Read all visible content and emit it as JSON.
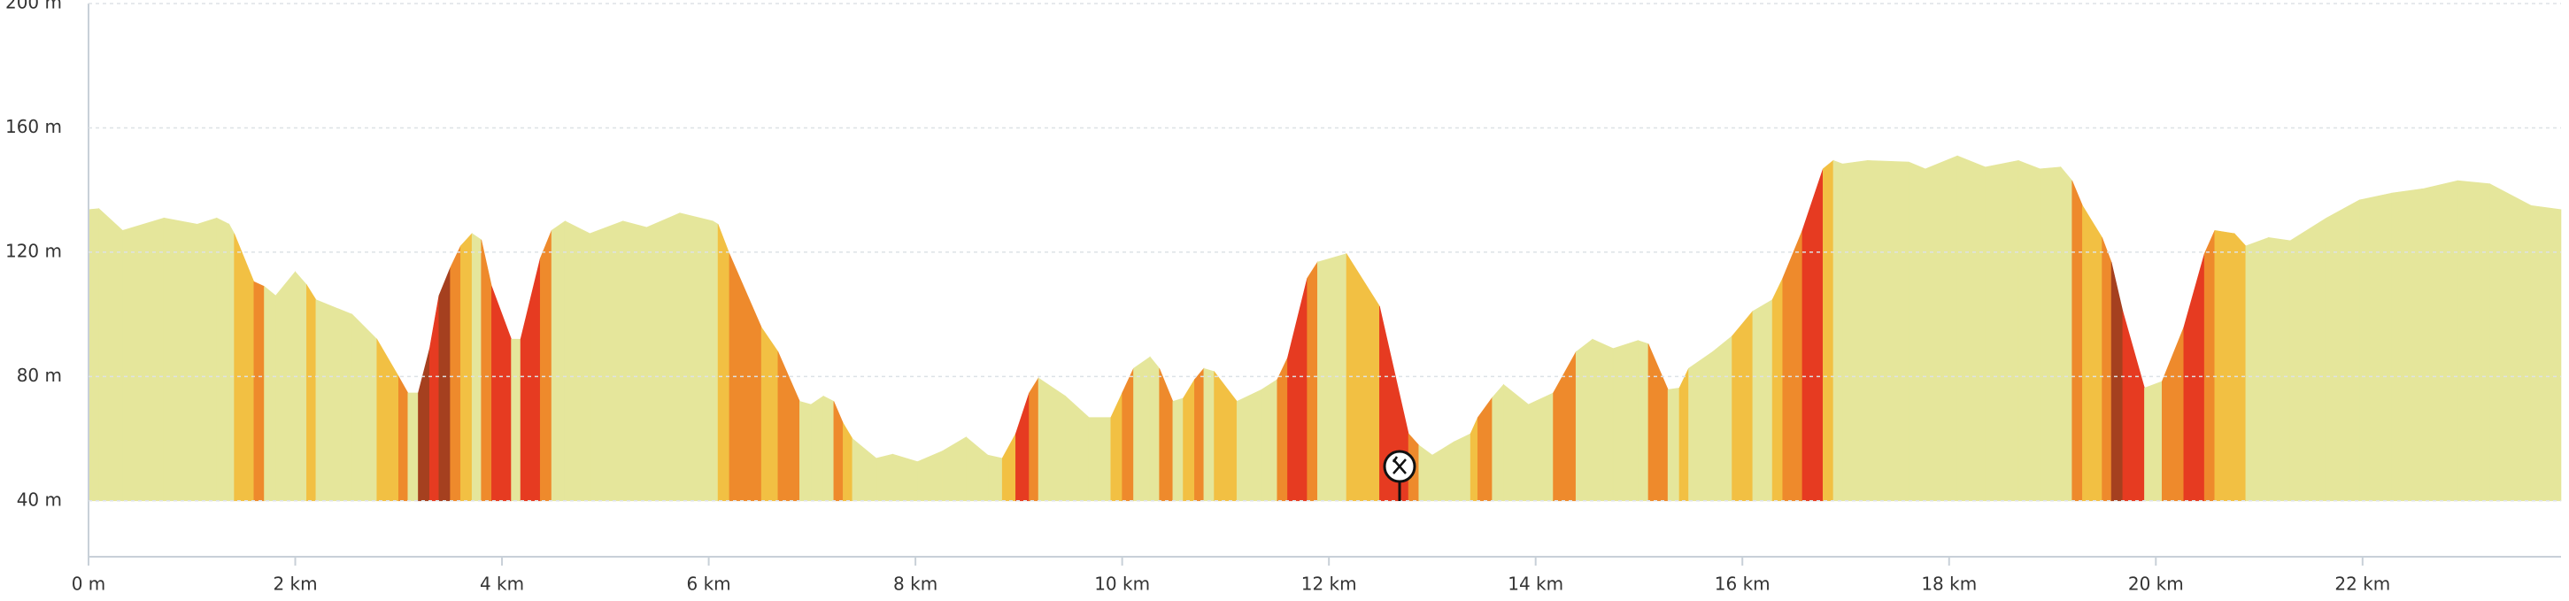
{
  "chart_data": {
    "type": "area",
    "x": [
      0,
      0.1,
      0.33,
      0.73,
      1.05,
      1.24,
      1.36,
      1.41,
      1.6,
      1.7,
      1.81,
      2.0,
      2.11,
      2.2,
      2.55,
      2.79,
      3.0,
      3.09,
      3.19,
      3.3,
      3.39,
      3.5,
      3.6,
      3.71,
      3.8,
      3.9,
      4.09,
      4.18,
      4.37,
      4.48,
      4.61,
      4.85,
      5.17,
      5.4,
      5.72,
      6.04,
      6.09,
      6.2,
      6.51,
      6.67,
      6.88,
      6.99,
      7.11,
      7.21,
      7.3,
      7.39,
      7.62,
      7.78,
      8.02,
      8.26,
      8.49,
      8.7,
      8.84,
      8.97,
      9.1,
      9.19,
      9.45,
      9.68,
      9.89,
      10.0,
      10.11,
      10.27,
      10.36,
      10.49,
      10.59,
      10.7,
      10.79,
      10.89,
      11.11,
      11.35,
      11.5,
      11.6,
      11.79,
      11.89,
      12.17,
      12.49,
      12.77,
      12.87,
      13.0,
      13.21,
      13.37,
      13.44,
      13.58,
      13.69,
      13.93,
      14.17,
      14.39,
      14.55,
      14.75,
      14.99,
      15.09,
      15.28,
      15.39,
      15.48,
      15.71,
      15.9,
      16.1,
      16.29,
      16.39,
      16.58,
      16.78,
      16.88,
      16.97,
      17.21,
      17.61,
      17.77,
      18.08,
      18.35,
      18.67,
      18.88,
      19.08,
      19.19,
      19.29,
      19.48,
      19.57,
      19.68,
      19.89,
      20.06,
      20.27,
      20.47,
      20.57,
      20.76,
      20.87,
      21.09,
      21.3,
      21.65,
      21.97,
      22.28,
      22.6,
      22.92,
      23.23,
      23.63,
      23.92
    ],
    "values": [
      133.7,
      134,
      127,
      131,
      129,
      131,
      129,
      126,
      110.5,
      109,
      106,
      113.7,
      109.5,
      104.7,
      100,
      92,
      80,
      74.7,
      74.7,
      89,
      106,
      115,
      122,
      126,
      124,
      109,
      92,
      92,
      118,
      127,
      130,
      126,
      130,
      128,
      132.6,
      130,
      129,
      119.5,
      95.8,
      88,
      72,
      71,
      73.7,
      72,
      65,
      60,
      53.7,
      55,
      52.6,
      56,
      60.5,
      54.7,
      53.7,
      61.6,
      74.7,
      79.5,
      73.7,
      66.8,
      66.8,
      74.7,
      82.6,
      86.3,
      82.6,
      72,
      73,
      79,
      82.6,
      81.6,
      72,
      75.8,
      79,
      86,
      111.6,
      116.8,
      119.5,
      102.6,
      61.6,
      57.9,
      54.7,
      59,
      61.6,
      66.8,
      73.2,
      77.4,
      71,
      74.7,
      87.9,
      92,
      89,
      91.6,
      90.5,
      75.8,
      76.3,
      82.6,
      87.9,
      93,
      101,
      104.7,
      111.6,
      127,
      146.8,
      149.5,
      148.4,
      149.5,
      149,
      146.8,
      151,
      147.4,
      149.5,
      146.8,
      147.4,
      143,
      135,
      124.7,
      116.8,
      101,
      76.3,
      78.4,
      95.8,
      119.5,
      127,
      126,
      122,
      124.7,
      123.7,
      131,
      136.8,
      139,
      140.5,
      143,
      142,
      135,
      133.7
    ],
    "segment_colors": [
      "#e5e69b",
      "#e5e69b",
      "#e5e69b",
      "#e5e69b",
      "#e5e69b",
      "#e5e69b",
      "#e5e69b",
      "#f2c043",
      "#ee8a2c",
      "#e5e69b",
      "#e5e69b",
      "#e5e69b",
      "#f2c043",
      "#e5e69b",
      "#e5e69b",
      "#f2c043",
      "#ee8a2c",
      "#e5e69b",
      "#a5401f",
      "#e63b21",
      "#a5401f",
      "#ee8a2c",
      "#f2c043",
      "#e5e69b",
      "#ee8a2c",
      "#e63b21",
      "#e5e69b",
      "#e63b21",
      "#ee8a2c",
      "#e5e69b",
      "#e5e69b",
      "#e5e69b",
      "#e5e69b",
      "#e5e69b",
      "#e5e69b",
      "#e5e69b",
      "#f2c043",
      "#ee8a2c",
      "#f2c043",
      "#ee8a2c",
      "#e5e69b",
      "#e5e69b",
      "#e5e69b",
      "#ee8a2c",
      "#f2c043",
      "#e5e69b",
      "#e5e69b",
      "#e5e69b",
      "#e5e69b",
      "#e5e69b",
      "#e5e69b",
      "#e5e69b",
      "#f2c043",
      "#e63b21",
      "#ee8a2c",
      "#e5e69b",
      "#e5e69b",
      "#e5e69b",
      "#f2c043",
      "#ee8a2c",
      "#e5e69b",
      "#e5e69b",
      "#ee8a2c",
      "#e5e69b",
      "#f2c043",
      "#ee8a2c",
      "#e5e69b",
      "#f2c043",
      "#e5e69b",
      "#e5e69b",
      "#ee8a2c",
      "#e63b21",
      "#ee8a2c",
      "#e5e69b",
      "#f2c043",
      "#e63b21",
      "#ee8a2c",
      "#e5e69b",
      "#e5e69b",
      "#e5e69b",
      "#f2c043",
      "#ee8a2c",
      "#e5e69b",
      "#e5e69b",
      "#e5e69b",
      "#ee8a2c",
      "#e5e69b",
      "#e5e69b",
      "#e5e69b",
      "#e5e69b",
      "#ee8a2c",
      "#e5e69b",
      "#f2c043",
      "#e5e69b",
      "#e5e69b",
      "#f2c043",
      "#e5e69b",
      "#f2c043",
      "#ee8a2c",
      "#e63b21",
      "#f2c043",
      "#e5e69b",
      "#e5e69b",
      "#e5e69b",
      "#e5e69b",
      "#e5e69b",
      "#e5e69b",
      "#e5e69b",
      "#e5e69b",
      "#e5e69b",
      "#e5e69b",
      "#ee8a2c",
      "#f2c043",
      "#ee8a2c",
      "#a5401f",
      "#e63b21",
      "#e5e69b",
      "#ee8a2c",
      "#e63b21",
      "#ee8a2c",
      "#f2c043",
      "#f2c043",
      "#e5e69b",
      "#e5e69b",
      "#e5e69b",
      "#e5e69b",
      "#e5e69b",
      "#e5e69b",
      "#e5e69b",
      "#e5e69b",
      "#e5e69b",
      "#e5e69b"
    ],
    "xlim": [
      0,
      23.92
    ],
    "ylim": [
      22,
      200
    ],
    "xticks": [
      {
        "value": 0,
        "label": "0 m"
      },
      {
        "value": 2,
        "label": "2 km"
      },
      {
        "value": 4,
        "label": "4 km"
      },
      {
        "value": 6,
        "label": "6 km"
      },
      {
        "value": 8,
        "label": "8 km"
      },
      {
        "value": 10,
        "label": "10 km"
      },
      {
        "value": 12,
        "label": "12 km"
      },
      {
        "value": 14,
        "label": "14 km"
      },
      {
        "value": 16,
        "label": "16 km"
      },
      {
        "value": 18,
        "label": "18 km"
      },
      {
        "value": 20,
        "label": "20 km"
      },
      {
        "value": 22,
        "label": "22 km"
      }
    ],
    "yticks": [
      {
        "value": 40,
        "label": "40 m"
      },
      {
        "value": 80,
        "label": "80 m"
      },
      {
        "value": 120,
        "label": "120 m"
      },
      {
        "value": 160,
        "label": "160 m"
      },
      {
        "value": 200,
        "label": "200 m"
      }
    ],
    "grid": true
  }
}
